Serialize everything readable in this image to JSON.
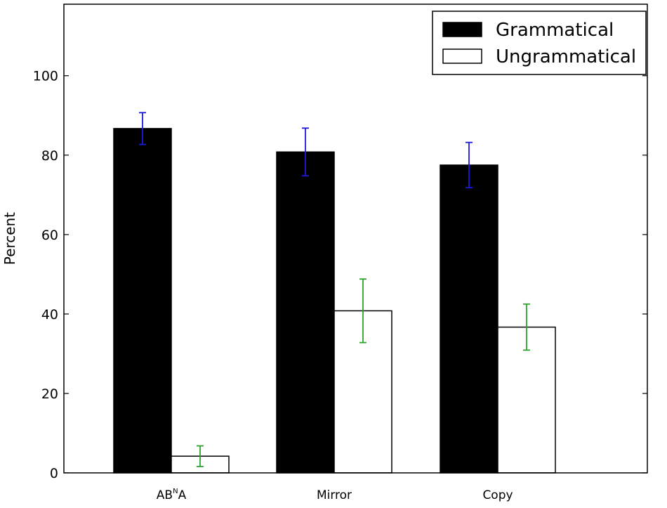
{
  "chart_data": {
    "type": "bar",
    "title": "",
    "xlabel": "",
    "ylabel": "Percent",
    "ylim": [
      0,
      118
    ],
    "yticks": [
      0,
      20,
      40,
      60,
      80,
      100
    ],
    "categories": [
      {
        "base": "AB",
        "sup": "N",
        "tail": "A"
      },
      {
        "base": "Mirror",
        "sup": "",
        "tail": ""
      },
      {
        "base": "Copy",
        "sup": "",
        "tail": ""
      }
    ],
    "series": [
      {
        "name": "Grammatical",
        "color": "#000000",
        "error_color": "#1a1adb",
        "values": [
          86.7,
          80.8,
          77.5
        ],
        "errors": [
          4.0,
          6.0,
          5.7
        ]
      },
      {
        "name": "Ungrammatical",
        "color": "#ffffff",
        "error_color": "#2ea32e",
        "values": [
          4.2,
          40.8,
          36.7
        ],
        "errors": [
          2.6,
          8.0,
          5.8
        ]
      }
    ],
    "grid": false,
    "legend": "top-right"
  }
}
